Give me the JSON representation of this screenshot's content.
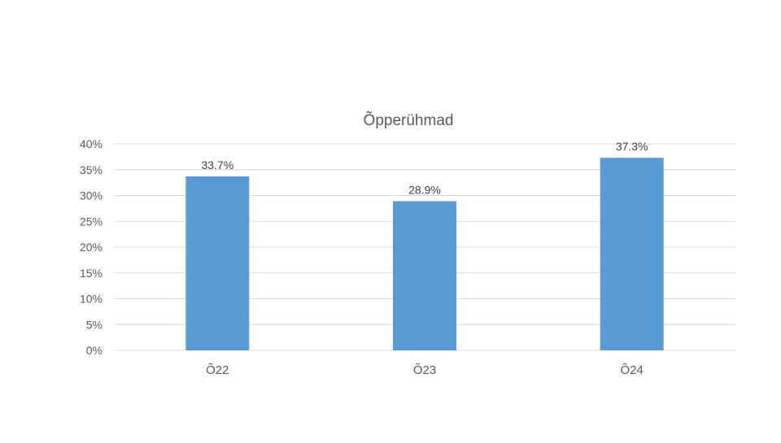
{
  "chart_data": {
    "type": "bar",
    "title": "Õpperühmad",
    "categories": [
      "Õ22",
      "Õ23",
      "Õ24"
    ],
    "values": [
      33.7,
      28.9,
      37.3
    ],
    "data_labels": [
      "33.7%",
      "28.9%",
      "37.3%"
    ],
    "ylim": [
      0,
      40
    ],
    "y_ticks": [
      "0%",
      "5%",
      "10%",
      "15%",
      "20%",
      "25%",
      "30%",
      "35%",
      "40%"
    ],
    "y_tick_values": [
      0,
      5,
      10,
      15,
      20,
      25,
      30,
      35,
      40
    ],
    "grid": true,
    "legend": "none",
    "bar_color": "#5b9bd5"
  }
}
